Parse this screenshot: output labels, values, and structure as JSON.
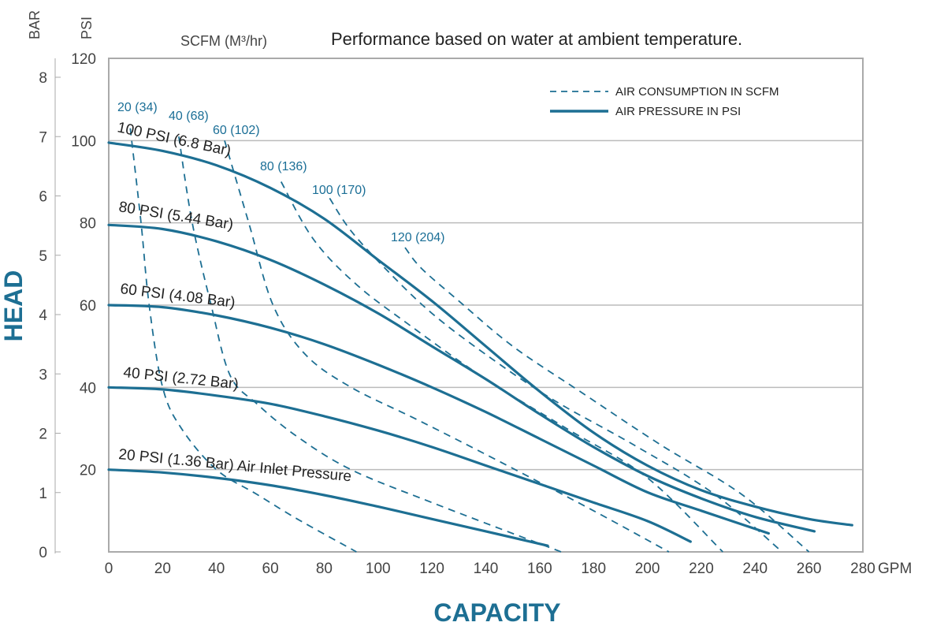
{
  "chart_data": {
    "type": "line",
    "title": "Performance based on water at ambient temperature.",
    "xlabel": "CAPACITY",
    "x_unit": "GPM",
    "ylabel": "HEAD",
    "y_units": [
      "BAR",
      "PSI"
    ],
    "scfm_header": "SCFM (M³/hr)",
    "xlim": [
      0,
      280
    ],
    "ylim_psi": [
      0,
      120
    ],
    "ylim_bar": [
      0,
      8
    ],
    "x_ticks": [
      0,
      20,
      40,
      60,
      80,
      100,
      120,
      140,
      160,
      180,
      200,
      220,
      240,
      260,
      280
    ],
    "psi_ticks": [
      20,
      40,
      60,
      80,
      100,
      120
    ],
    "bar_ticks": [
      0,
      1,
      2,
      3,
      4,
      5,
      6,
      7,
      8
    ],
    "grid": true,
    "legend_position": "top-right",
    "legend": [
      {
        "label": "AIR CONSUMPTION IN SCFM",
        "style": "dashed"
      },
      {
        "label": "AIR PRESSURE IN PSI",
        "style": "solid"
      }
    ],
    "colors": {
      "curve": "#1d6f93",
      "scfm_text": "#1a6e96",
      "grid": "#bbbbbb",
      "axis_title": "#1d6f93"
    },
    "pressure_series": [
      {
        "name": "100 PSI (6.8 Bar)",
        "x": [
          0,
          20,
          40,
          60,
          80,
          100,
          120,
          140,
          160,
          180,
          200,
          220,
          240,
          260,
          276
        ],
        "y": [
          99.5,
          97.5,
          94,
          88.5,
          81,
          71,
          61,
          50,
          39,
          29,
          21,
          15,
          11,
          8,
          6.5
        ]
      },
      {
        "name": "80 PSI (5.44 Bar)",
        "x": [
          0,
          20,
          40,
          60,
          80,
          100,
          120,
          140,
          160,
          180,
          200,
          220,
          240,
          262
        ],
        "y": [
          79.5,
          78.5,
          75.5,
          71,
          65,
          58,
          50,
          42,
          33.5,
          25.5,
          18.5,
          13,
          8.5,
          5
        ]
      },
      {
        "name": "60 PSI (4.08 Bar)",
        "x": [
          0,
          20,
          40,
          60,
          80,
          100,
          120,
          140,
          160,
          180,
          200,
          220,
          245
        ],
        "y": [
          60,
          59.5,
          57.5,
          54.5,
          50.5,
          45.5,
          40,
          34,
          27.5,
          21,
          14.5,
          10,
          4.5
        ]
      },
      {
        "name": "40 PSI (2.72 Bar)",
        "x": [
          0,
          20,
          40,
          60,
          80,
          100,
          120,
          140,
          160,
          180,
          200,
          216
        ],
        "y": [
          40,
          39.5,
          38,
          36,
          33,
          29.5,
          25.5,
          21,
          16.5,
          12,
          7.5,
          2.5
        ]
      },
      {
        "name": "20 PSI (1.36 Bar) Air Inlet Pressure",
        "x": [
          0,
          20,
          40,
          60,
          80,
          100,
          120,
          140,
          163
        ],
        "y": [
          20,
          19.3,
          18,
          16.2,
          13.8,
          11,
          8,
          5,
          1.5
        ]
      }
    ],
    "consumption_series": [
      {
        "name": "20 (34)",
        "x": [
          8,
          12,
          15,
          20,
          27,
          40,
          55,
          70,
          92
        ],
        "y": [
          103,
          80,
          60,
          40,
          30,
          20,
          14,
          8,
          0
        ]
      },
      {
        "name": "40 (68)",
        "x": [
          26,
          31,
          38,
          45,
          55,
          70,
          90,
          120,
          168
        ],
        "y": [
          101,
          80,
          60,
          43,
          36,
          28,
          20,
          12,
          0
        ]
      },
      {
        "name": "60 (102)",
        "x": [
          43,
          52,
          61,
          73,
          90,
          115,
          145,
          180,
          208
        ],
        "y": [
          100,
          80,
          60,
          48,
          40,
          32,
          22,
          10,
          0
        ]
      },
      {
        "name": "80 (136)",
        "x": [
          64,
          76,
          92,
          112,
          140,
          170,
          200,
          228
        ],
        "y": [
          90,
          76,
          65,
          55,
          42,
          30,
          18,
          0
        ]
      },
      {
        "name": "100 (170)",
        "x": [
          82,
          90,
          104,
          120,
          140,
          165,
          195,
          225,
          250
        ],
        "y": [
          86,
          78,
          68,
          58,
          48,
          37,
          26,
          14,
          0
        ]
      },
      {
        "name": "120 (204)",
        "x": [
          110,
          116,
          130,
          150,
          175,
          205,
          235,
          260
        ],
        "y": [
          74,
          69,
          61,
          50,
          39,
          26,
          14,
          0
        ]
      }
    ]
  }
}
